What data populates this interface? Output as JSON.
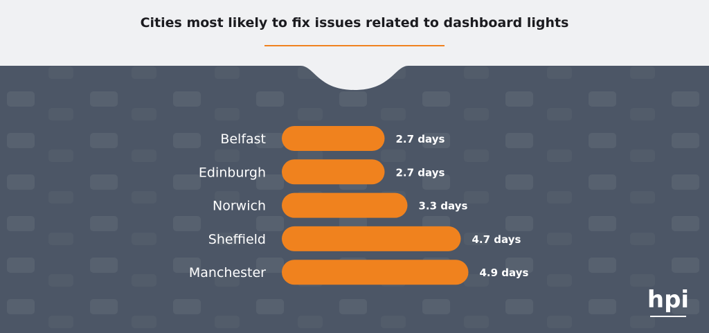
{
  "chart_data": {
    "type": "bar",
    "orientation": "horizontal",
    "title": "Cities most likely to fix issues related to dashboard lights",
    "categories": [
      "Belfast",
      "Edinburgh",
      "Norwich",
      "Sheffield",
      "Manchester"
    ],
    "values": [
      2.7,
      2.7,
      3.3,
      4.7,
      4.9
    ],
    "value_labels": [
      "2.7 days",
      "2.7 days",
      "3.3 days",
      "4.7 days",
      "4.9 days"
    ],
    "unit": "days",
    "grid": false,
    "colors": {
      "bar": "#f0821e",
      "accent_line": "#f0821e",
      "background_top": "#f0f1f3",
      "background_photo": "#4c5666"
    }
  },
  "logo": "hpi"
}
